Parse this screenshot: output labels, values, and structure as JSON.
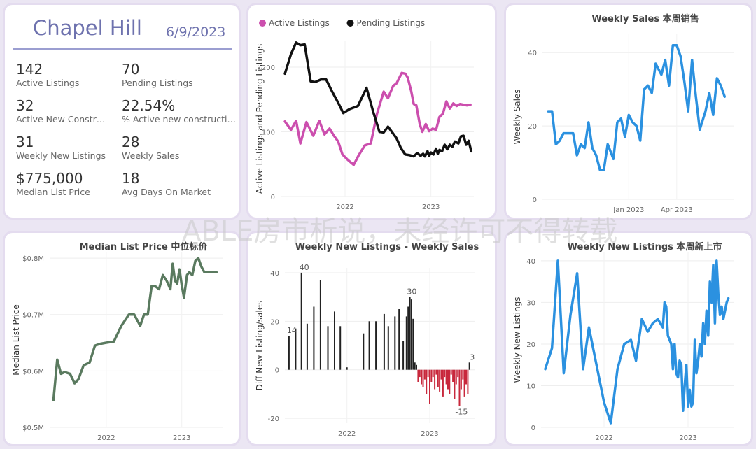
{
  "kpi": {
    "title": "Chapel Hill",
    "date": "6/9/2023",
    "items": [
      {
        "value": "142",
        "label": "Active Listings"
      },
      {
        "value": "70",
        "label": "Pending Listings"
      },
      {
        "value": "32",
        "label": "Active New Constructions"
      },
      {
        "value": "22.54%",
        "label": "% Active new constructions"
      },
      {
        "value": "31",
        "label": "Weekly New Listings"
      },
      {
        "value": "28",
        "label": "Weekly Sales"
      },
      {
        "value": "$775,000",
        "label": "Median List Price"
      },
      {
        "value": "18",
        "label": "Avg Days On Market"
      }
    ]
  },
  "watermark": "ABLE房市析说，未经许可不得转载",
  "colors": {
    "magenta": "#cc4fae",
    "black": "#111111",
    "blue": "#2b91e0",
    "green": "#5a7a5f",
    "red": "#c8283c",
    "bar": "#222222"
  },
  "chart_data": [
    {
      "id": "active_pending",
      "type": "line",
      "title": "",
      "ylabel": "Active Listings and Pending Listings",
      "xlabel": "",
      "xlim": [
        2021.25,
        2023.5
      ],
      "ylim": [
        0,
        240
      ],
      "yticks": [
        0,
        100,
        200
      ],
      "xticks": [
        {
          "x": 2022.0,
          "label": "2022"
        },
        {
          "x": 2023.0,
          "label": "2023"
        }
      ],
      "legend": "top-left",
      "series": [
        {
          "name": "Active Listings",
          "color": "#cc4fae",
          "x": [
            2021.3,
            2021.37,
            2021.43,
            2021.48,
            2021.55,
            2021.63,
            2021.7,
            2021.76,
            2021.82,
            2021.87,
            2021.92,
            2021.97,
            2022.03,
            2022.1,
            2022.16,
            2022.23,
            2022.3,
            2022.37,
            2022.45,
            2022.5,
            2022.56,
            2022.6,
            2022.66,
            2022.7,
            2022.73,
            2022.77,
            2022.8,
            2022.83,
            2022.87,
            2022.9,
            2022.94,
            2022.98,
            2023.02,
            2023.06,
            2023.1,
            2023.14,
            2023.18,
            2023.22,
            2023.26,
            2023.3,
            2023.34,
            2023.38,
            2023.42,
            2023.46
          ],
          "y": [
            116,
            103,
            117,
            82,
            115,
            94,
            117,
            96,
            105,
            94,
            85,
            65,
            57,
            49,
            64,
            79,
            82,
            127,
            162,
            152,
            171,
            175,
            191,
            190,
            184,
            163,
            143,
            141,
            112,
            100,
            112,
            101,
            105,
            103,
            123,
            128,
            147,
            136,
            144,
            140,
            143,
            142,
            141,
            142
          ]
        },
        {
          "name": "Pending Listings",
          "color": "#111111",
          "x": [
            2021.3,
            2021.37,
            2021.43,
            2021.48,
            2021.53,
            2021.6,
            2021.65,
            2021.72,
            2021.78,
            2021.85,
            2021.92,
            2021.98,
            2022.05,
            2022.15,
            2022.25,
            2022.33,
            2022.4,
            2022.45,
            2022.5,
            2022.55,
            2022.6,
            2022.65,
            2022.7,
            2022.75,
            2022.8,
            2022.84,
            2022.88,
            2022.91,
            2022.93,
            2022.96,
            2022.98,
            2023.0,
            2023.03,
            2023.06,
            2023.08,
            2023.1,
            2023.13,
            2023.16,
            2023.19,
            2023.22,
            2023.25,
            2023.28,
            2023.32,
            2023.35,
            2023.38,
            2023.41,
            2023.44,
            2023.47
          ],
          "y": [
            190,
            220,
            238,
            234,
            235,
            178,
            177,
            181,
            181,
            162,
            145,
            129,
            135,
            140,
            168,
            130,
            100,
            99,
            108,
            99,
            90,
            75,
            65,
            64,
            62,
            67,
            63,
            66,
            62,
            70,
            63,
            68,
            65,
            74,
            66,
            72,
            70,
            80,
            73,
            80,
            77,
            85,
            82,
            93,
            94,
            80,
            86,
            70
          ]
        }
      ]
    },
    {
      "id": "weekly_sales",
      "type": "line",
      "title": "Weekly Sales 本周销售",
      "ylabel": "Weekly Sales",
      "xlabel": "",
      "xlim": [
        2022.55,
        2023.55
      ],
      "ylim": [
        0,
        45
      ],
      "yticks": [
        0,
        20,
        40
      ],
      "xticks": [
        {
          "x": 2023.0,
          "label": "Jan 2023"
        },
        {
          "x": 2023.25,
          "label": "Apr 2023"
        }
      ],
      "series": [
        {
          "name": "",
          "color": "#2b91e0",
          "x": [
            2022.58,
            2022.6,
            2022.62,
            2022.64,
            2022.66,
            2022.68,
            2022.71,
            2022.73,
            2022.75,
            2022.77,
            2022.79,
            2022.81,
            2022.83,
            2022.85,
            2022.87,
            2022.89,
            2022.92,
            2022.94,
            2022.96,
            2022.98,
            2023.0,
            2023.02,
            2023.04,
            2023.06,
            2023.08,
            2023.1,
            2023.12,
            2023.14,
            2023.17,
            2023.19,
            2023.21,
            2023.23,
            2023.25,
            2023.27,
            2023.29,
            2023.31,
            2023.33,
            2023.35,
            2023.37,
            2023.4,
            2023.42,
            2023.44,
            2023.46,
            2023.48,
            2023.5
          ],
          "y": [
            24,
            24,
            15,
            16,
            18,
            18,
            18,
            12,
            15,
            14,
            21,
            14,
            12,
            8,
            8,
            15,
            11,
            21,
            22,
            17,
            23,
            21,
            20,
            16,
            30,
            31,
            29,
            37,
            34,
            38,
            31,
            42,
            42,
            39,
            32,
            24,
            38,
            28,
            19,
            24,
            29,
            23,
            33,
            31,
            28
          ]
        }
      ]
    },
    {
      "id": "median_list_price",
      "type": "line",
      "title": "Median List Price  中位标价",
      "ylabel": "Median List Price",
      "xlabel": "",
      "xlim": [
        2021.25,
        2023.55
      ],
      "ylim": [
        0.5,
        0.81
      ],
      "yticks": [
        {
          "y": 0.5,
          "label": "$0.5M"
        },
        {
          "y": 0.6,
          "label": "$0.6M"
        },
        {
          "y": 0.7,
          "label": "$0.7M"
        },
        {
          "y": 0.8,
          "label": "$0.8M"
        }
      ],
      "xticks": [
        {
          "x": 2022.0,
          "label": "2022"
        },
        {
          "x": 2023.0,
          "label": "2023"
        }
      ],
      "series": [
        {
          "name": "",
          "color": "#5a7a5f",
          "x": [
            2021.3,
            2021.35,
            2021.4,
            2021.45,
            2021.52,
            2021.58,
            2021.63,
            2021.7,
            2021.78,
            2021.85,
            2021.92,
            2022.0,
            2022.1,
            2022.2,
            2022.3,
            2022.37,
            2022.45,
            2022.5,
            2022.55,
            2022.6,
            2022.65,
            2022.7,
            2022.75,
            2022.8,
            2022.85,
            2022.88,
            2022.91,
            2022.94,
            2022.97,
            2023.0,
            2023.03,
            2023.07,
            2023.1,
            2023.14,
            2023.18,
            2023.22,
            2023.26,
            2023.3,
            2023.34,
            2023.38,
            2023.42,
            2023.46
          ],
          "y": [
            0.548,
            0.62,
            0.595,
            0.598,
            0.595,
            0.578,
            0.585,
            0.61,
            0.615,
            0.645,
            0.648,
            0.65,
            0.652,
            0.68,
            0.7,
            0.7,
            0.68,
            0.7,
            0.7,
            0.75,
            0.75,
            0.745,
            0.77,
            0.76,
            0.745,
            0.79,
            0.76,
            0.755,
            0.78,
            0.752,
            0.73,
            0.77,
            0.775,
            0.77,
            0.795,
            0.8,
            0.785,
            0.775,
            0.775,
            0.775,
            0.775,
            0.775
          ]
        }
      ]
    },
    {
      "id": "diff_new_listings_sales",
      "type": "bar",
      "title": "Weekly New Listings - Weekly Sales",
      "ylabel": "Diff New Listing/sales",
      "xlabel": "",
      "xlim": [
        2021.25,
        2023.55
      ],
      "ylim": [
        -22,
        42
      ],
      "yticks": [
        -20,
        0,
        20,
        40
      ],
      "xticks": [
        {
          "x": 2022.0,
          "label": "2022"
        },
        {
          "x": 2023.0,
          "label": "2023"
        }
      ],
      "data_labels": [
        {
          "x": 2021.3,
          "y": 14,
          "label": "14"
        },
        {
          "x": 2021.45,
          "y": 40,
          "label": "40"
        },
        {
          "x": 2022.75,
          "y": 30,
          "label": "30"
        },
        {
          "x": 2023.35,
          "y": -15,
          "label": "-15"
        },
        {
          "x": 2023.48,
          "y": 3,
          "label": "3"
        }
      ],
      "x": [
        2021.3,
        2021.38,
        2021.45,
        2021.52,
        2021.6,
        2021.68,
        2021.77,
        2021.85,
        2021.92,
        2022.0,
        2022.2,
        2022.27,
        2022.35,
        2022.45,
        2022.5,
        2022.58,
        2022.63,
        2022.68,
        2022.72,
        2022.74,
        2022.76,
        2022.78,
        2022.8,
        2022.82,
        2022.84,
        2022.86,
        2022.88,
        2022.9,
        2022.92,
        2022.94,
        2022.96,
        2022.98,
        2023.0,
        2023.02,
        2023.04,
        2023.06,
        2023.08,
        2023.1,
        2023.12,
        2023.14,
        2023.16,
        2023.18,
        2023.2,
        2023.22,
        2023.24,
        2023.26,
        2023.28,
        2023.3,
        2023.32,
        2023.34,
        2023.36,
        2023.38,
        2023.4,
        2023.42,
        2023.44,
        2023.46,
        2023.48
      ],
      "values": [
        14,
        17,
        40,
        19,
        26,
        37,
        18,
        24,
        18,
        1,
        15,
        20,
        20,
        23,
        18,
        22,
        25,
        12,
        22,
        26,
        30,
        29,
        21,
        3,
        2,
        -5,
        -3,
        -6,
        -7,
        -4,
        -10,
        -3,
        -14,
        -5,
        -3,
        -8,
        -2,
        -7,
        -9,
        -4,
        -11,
        -3,
        -6,
        -8,
        -10,
        -2,
        -5,
        -12,
        -6,
        -3,
        -15,
        -8,
        -4,
        -11,
        -6,
        -10,
        3
      ]
    },
    {
      "id": "weekly_new_listings",
      "type": "line",
      "title": "Weekly New Listings  本周新上市",
      "ylabel": "Weekly New Listings",
      "xlabel": "",
      "xlim": [
        2021.25,
        2023.55
      ],
      "ylim": [
        0,
        42
      ],
      "yticks": [
        0,
        10,
        20,
        30,
        40
      ],
      "xticks": [
        {
          "x": 2022.0,
          "label": "2022"
        },
        {
          "x": 2023.0,
          "label": "2023"
        }
      ],
      "series": [
        {
          "name": "",
          "color": "#2b91e0",
          "x": [
            2021.3,
            2021.38,
            2021.45,
            2021.52,
            2021.6,
            2021.68,
            2021.75,
            2021.82,
            2021.9,
            2022.0,
            2022.08,
            2022.16,
            2022.24,
            2022.32,
            2022.38,
            2022.45,
            2022.52,
            2022.58,
            2022.64,
            2022.7,
            2022.72,
            2022.74,
            2022.76,
            2022.78,
            2022.8,
            2022.82,
            2022.84,
            2022.86,
            2022.88,
            2022.9,
            2022.92,
            2022.94,
            2022.96,
            2022.98,
            2023.0,
            2023.02,
            2023.04,
            2023.06,
            2023.08,
            2023.1,
            2023.12,
            2023.14,
            2023.16,
            2023.18,
            2023.2,
            2023.22,
            2023.24,
            2023.26,
            2023.28,
            2023.3,
            2023.32,
            2023.34,
            2023.36,
            2023.38,
            2023.4,
            2023.42,
            2023.44,
            2023.46,
            2023.48
          ],
          "y": [
            14,
            19,
            40,
            13,
            27,
            37,
            14,
            24,
            16,
            6,
            1,
            14,
            20,
            21,
            16,
            26,
            23,
            25,
            26,
            24,
            30,
            29,
            22,
            21,
            20,
            14,
            20,
            13,
            12,
            16,
            15,
            4,
            10,
            15,
            5,
            9,
            5,
            6,
            21,
            13,
            16,
            20,
            17,
            25,
            20,
            28,
            22,
            35,
            30,
            39,
            25,
            40,
            32,
            27,
            29,
            26,
            28,
            30,
            31
          ]
        }
      ]
    }
  ]
}
